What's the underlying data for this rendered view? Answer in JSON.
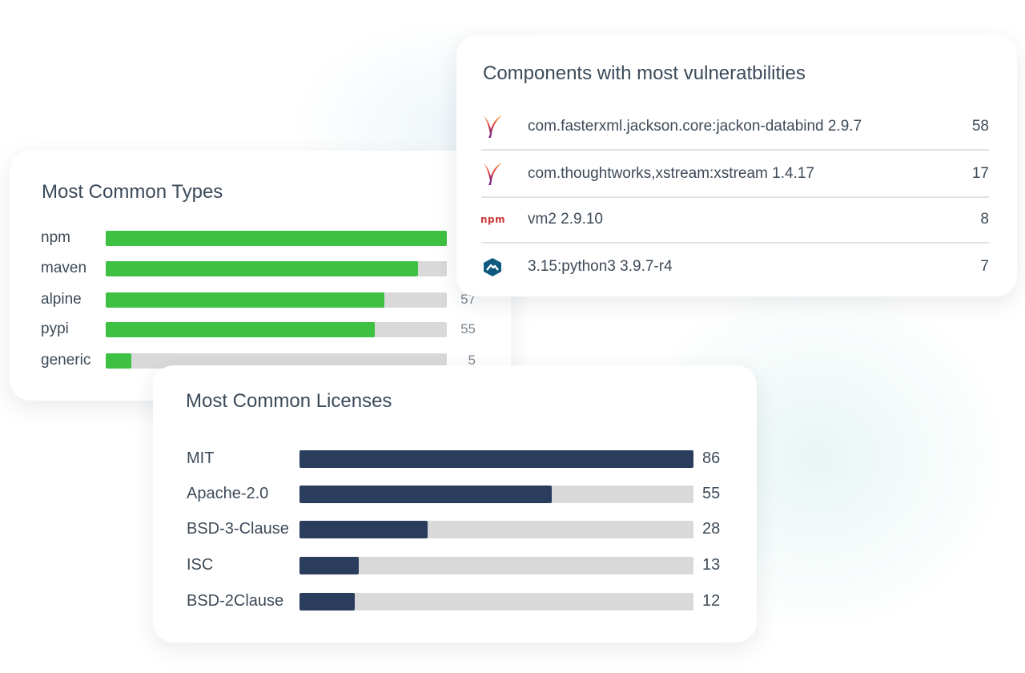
{
  "colors": {
    "types_bar": "#3ec042",
    "licenses_bar": "#2b3d5d",
    "track": "#d9d9d9",
    "npm_logo": "#cb3837",
    "alpine_logo": "#0d597f"
  },
  "vulnerabilities": {
    "title": "Components with most vulneratbilities",
    "items": [
      {
        "icon": "apache-feather-icon",
        "name": "com.fasterxml.jackson.core:jackon-databind 2.9.7",
        "count": "58"
      },
      {
        "icon": "apache-feather-icon",
        "name": "com.thoughtworks,xstream:xstream 1.4.17",
        "count": "17"
      },
      {
        "icon": "npm-logo-icon",
        "icon_text": "npm",
        "name": "vm2 2.9.10",
        "count": "8"
      },
      {
        "icon": "alpine-logo-icon",
        "name": "3.15:python3 3.9.7-r4",
        "count": "7"
      }
    ]
  },
  "types": {
    "title": "Most Common Types",
    "items": [
      {
        "label": "npm",
        "fraction": 1.0,
        "value": ""
      },
      {
        "label": "maven",
        "fraction": 0.915,
        "value": ""
      },
      {
        "label": "alpine",
        "fraction": 0.816,
        "value": "57"
      },
      {
        "label": "pypi",
        "fraction": 0.788,
        "value": "55"
      },
      {
        "label": "generic",
        "fraction": 0.075,
        "value": "5"
      }
    ]
  },
  "licenses": {
    "title": "Most Common Licenses",
    "max": 86,
    "items": [
      {
        "label": "MIT",
        "value": 86
      },
      {
        "label": "Apache-2.0",
        "value": 55
      },
      {
        "label": "BSD-3-Clause",
        "value": 28
      },
      {
        "label": "ISC",
        "value": 13
      },
      {
        "label": "BSD-2Clause",
        "value": 12
      }
    ]
  }
}
